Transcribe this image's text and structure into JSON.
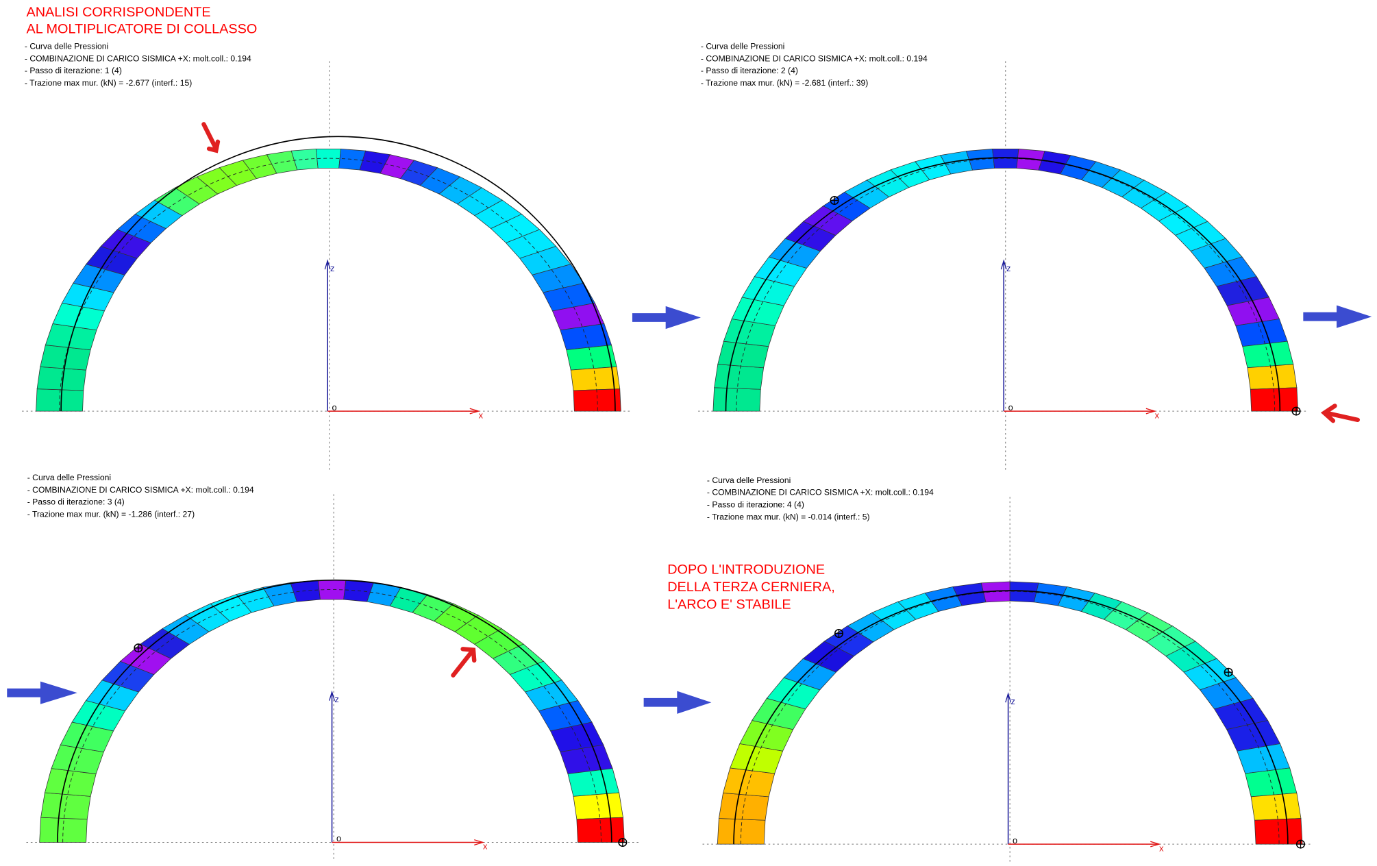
{
  "header": {
    "lines": [
      "ANALISI CORRISPONDENTE",
      "AL MOLTIPLICATORE DI COLLASSO"
    ]
  },
  "panels": [
    {
      "info": [
        "- Curva delle Pressioni",
        "- COMBINAZIONE DI CARICO SISMICA +X: molt.coll.: 0.194",
        "- Passo di iterazione: 1  (4)",
        "- Trazione max mur. (kN) = -2.677 (interf.: 15)"
      ],
      "segments": [
        "#00e890",
        "#00e890",
        "#00e890",
        "#00f0a0",
        "#00ffd0",
        "#00e0ff",
        "#0090ff",
        "#1a1ae0",
        "#3a10e8",
        "#0070ff",
        "#00c8ff",
        "#40ff70",
        "#70ff30",
        "#80ff20",
        "#80ff20",
        "#70ff30",
        "#50ff60",
        "#30ffa0",
        "#00ffd0",
        "#0070ff",
        "#2010e8",
        "#a010f0",
        "#1a40f0",
        "#0080ff",
        "#00b8ff",
        "#00d8ff",
        "#00e8ff",
        "#00f0ff",
        "#00e8ff",
        "#00d0ff",
        "#0090ff",
        "#0060ff",
        "#9010f0",
        "#0050ff",
        "#00ff80",
        "#ffd000",
        "#ff0000"
      ]
    },
    {
      "info": [
        "- Curva delle Pressioni",
        "- COMBINAZIONE DI CARICO SISMICA +X: molt.coll.: 0.194",
        "- Passo di iterazione: 2  (4)",
        "- Trazione max mur. (kN) = -2.681 (interf.: 39)"
      ],
      "segments": [
        "#00e890",
        "#00e890",
        "#00e890",
        "#00f0a0",
        "#00ffc0",
        "#00f8e0",
        "#00e8ff",
        "#00a0ff",
        "#3010e8",
        "#6010f0",
        "#0050ff",
        "#00c8ff",
        "#00f0f0",
        "#00f8f0",
        "#00f0ff",
        "#00c0ff",
        "#0070ff",
        "#1a20e8",
        "#a010f0",
        "#2010e8",
        "#0060ff",
        "#00a0ff",
        "#00c8ff",
        "#00d8ff",
        "#00e8ff",
        "#00f0ff",
        "#00e8ff",
        "#00c0ff",
        "#0080ff",
        "#2020e0",
        "#9010f0",
        "#0050ff",
        "#00ff90",
        "#ffd000",
        "#ff0000"
      ]
    },
    {
      "info": [
        "- Curva delle Pressioni",
        "- COMBINAZIONE DI CARICO SISMICA +X: molt.coll.: 0.194",
        "- Passo di iterazione: 3  (4)",
        "- Trazione max mur. (kN) = -1.286 (interf.: 27)"
      ],
      "segments": [
        "#60ff40",
        "#60ff40",
        "#60ff40",
        "#50ff50",
        "#40ff60",
        "#00ffc0",
        "#00d0ff",
        "#1a40f0",
        "#a010f0",
        "#2020e0",
        "#00b0ff",
        "#00e0ff",
        "#00f0ff",
        "#00e0ff",
        "#00a0ff",
        "#2010e8",
        "#a010f0",
        "#2010e8",
        "#00a0ff",
        "#00f0a0",
        "#40ff60",
        "#60ff30",
        "#60ff30",
        "#50ff40",
        "#30ff80",
        "#00ffc0",
        "#00c0ff",
        "#0060ff",
        "#2010e8",
        "#3010e8",
        "#00ffc0",
        "#ffff00",
        "#ff0000"
      ]
    },
    {
      "info": [
        "- Curva delle Pressioni",
        "- COMBINAZIONE DI CARICO SISMICA +X: molt.coll.: 0.194",
        "- Passo di iterazione: 4  (4)",
        "- Trazione max mur. (kN) = -0.014 (interf.: 5)"
      ],
      "segments": [
        "#ffb000",
        "#ffb000",
        "#ffc000",
        "#c0ff00",
        "#80ff20",
        "#40ff60",
        "#00ffc0",
        "#00a0ff",
        "#1a10e0",
        "#1a30f0",
        "#00b0ff",
        "#00e0ff",
        "#00e0ff",
        "#0080ff",
        "#1a20e8",
        "#a010f0",
        "#1a20e8",
        "#0070ff",
        "#00b0ff",
        "#00e8c0",
        "#30ffa0",
        "#40ff80",
        "#30ffa0",
        "#00f0c0",
        "#00d8ff",
        "#0090ff",
        "#1a20e8",
        "#1a20e8",
        "#00c0ff",
        "#00ff90",
        "#ffe000",
        "#ff0000"
      ]
    }
  ],
  "axis_labels": {
    "z": "z",
    "x": "x",
    "o": "o"
  },
  "note": {
    "lines": [
      "DOPO L'INTRODUZIONE",
      "DELLA TERZA CERNIERA,",
      "L'ARCO E' STABILE"
    ]
  }
}
